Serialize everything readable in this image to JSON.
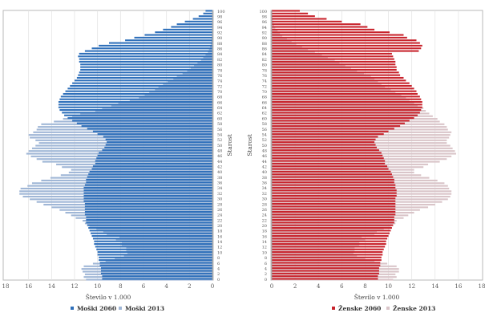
{
  "chart_data": [
    {
      "type": "bar",
      "orientation": "horizontal",
      "side": "left",
      "title": "",
      "xlabel": "Število v 1.000",
      "ylabel": "Starost",
      "xlim": [
        0,
        18
      ],
      "x_reversed": true,
      "x_ticks": [
        "0",
        "2",
        "4",
        "6",
        "8",
        "10",
        "12",
        "14",
        "16",
        "18"
      ],
      "grid": true,
      "legend_position": "bottom",
      "categories_label": "age 0-100",
      "y_tick_labels": [
        "0",
        "2",
        "4",
        "6",
        "8",
        "10",
        "12",
        "14",
        "16",
        "18",
        "20",
        "22",
        "24",
        "26",
        "28",
        "30",
        "32",
        "34",
        "36",
        "38",
        "40",
        "42",
        "44",
        "46",
        "48",
        "50",
        "52",
        "54",
        "56",
        "58",
        "60",
        "62",
        "64",
        "66",
        "68",
        "70",
        "72",
        "74",
        "76",
        "78",
        "80",
        "82",
        "84",
        "86",
        "88",
        "90",
        "92",
        "94",
        "96",
        "98",
        "100"
      ],
      "series": [
        {
          "name": "Moški 2060",
          "color": "#2e6fba",
          "values": [
            9.6,
            9.6,
            9.7,
            9.7,
            9.7,
            9.8,
            9.8,
            9.9,
            9.9,
            10.0,
            10.0,
            10.1,
            10.2,
            10.3,
            10.3,
            10.4,
            10.5,
            10.6,
            10.7,
            10.8,
            10.9,
            11.0,
            11.0,
            11.0,
            11.1,
            11.1,
            11.1,
            11.1,
            11.1,
            11.2,
            11.2,
            11.2,
            11.2,
            11.2,
            11.2,
            11.1,
            11.0,
            11.0,
            10.9,
            10.8,
            10.7,
            10.5,
            10.4,
            10.2,
            10.2,
            10.1,
            10.0,
            9.9,
            9.6,
            9.4,
            9.3,
            9.2,
            9.3,
            9.5,
            10.0,
            10.4,
            10.9,
            11.4,
            11.8,
            12.2,
            12.6,
            12.9,
            13.1,
            13.3,
            13.4,
            13.4,
            13.4,
            13.3,
            13.2,
            13.0,
            12.8,
            12.6,
            12.4,
            12.2,
            12.0,
            11.8,
            11.7,
            11.6,
            11.5,
            11.5,
            11.5,
            11.6,
            11.6,
            11.7,
            11.6,
            11.1,
            10.5,
            9.9,
            9.0,
            7.6,
            6.8,
            5.9,
            5.0,
            4.3,
            3.6,
            3.1,
            2.4,
            1.7,
            1.2,
            0.8,
            0.6
          ]
        },
        {
          "name": "Moški 2013",
          "color": "#9fb6d6",
          "values": [
            11.0,
            11.2,
            11.1,
            11.3,
            11.4,
            11.2,
            10.4,
            9.3,
            8.5,
            7.7,
            7.4,
            7.5,
            7.5,
            7.9,
            7.9,
            8.4,
            8.1,
            9.2,
            9.5,
            10.1,
            10.7,
            11.1,
            11.3,
            11.9,
            12.3,
            12.8,
            13.3,
            14.0,
            14.7,
            15.3,
            15.9,
            16.5,
            16.8,
            16.8,
            16.7,
            16.1,
            15.7,
            14.9,
            14.1,
            13.2,
            12.5,
            12.3,
            13.1,
            13.6,
            14.8,
            15.3,
            15.8,
            16.2,
            16.0,
            15.7,
            15.4,
            15.1,
            15.4,
            15.9,
            16.0,
            15.6,
            15.3,
            15.2,
            14.9,
            13.8,
            13.0,
            12.2,
            11.5,
            10.2,
            9.6,
            8.8,
            8.2,
            7.2,
            6.4,
            5.9,
            5.5,
            5.0,
            4.7,
            4.3,
            3.9,
            3.4,
            3.1,
            2.6,
            2.2,
            1.9,
            1.6,
            1.3,
            1.0,
            0.8,
            0.6,
            0.4,
            0.3,
            0.2,
            0.15,
            0.1,
            0.08,
            0.06,
            0.05,
            0.04,
            0.03,
            0.02,
            0.02,
            0.01,
            0.01,
            0.01,
            0.01
          ]
        }
      ]
    },
    {
      "type": "bar",
      "orientation": "horizontal",
      "side": "right",
      "title": "",
      "xlabel": "Število v 1.000",
      "ylabel": "Starost",
      "xlim": [
        0,
        18
      ],
      "x_ticks": [
        "0",
        "2",
        "4",
        "6",
        "8",
        "10",
        "12",
        "14",
        "16",
        "18"
      ],
      "grid": true,
      "legend_position": "bottom",
      "y_tick_labels": [
        "0",
        "2",
        "4",
        "6",
        "8",
        "10",
        "12",
        "14",
        "16",
        "18",
        "20",
        "22",
        "24",
        "26",
        "28",
        "30",
        "32",
        "34",
        "36",
        "38",
        "40",
        "42",
        "44",
        "46",
        "48",
        "50",
        "52",
        "54",
        "56",
        "58",
        "60",
        "62",
        "64",
        "66",
        "68",
        "70",
        "72",
        "74",
        "76",
        "78",
        "80",
        "82",
        "84",
        "86",
        "88",
        "90",
        "92",
        "94",
        "96",
        "98",
        "100"
      ],
      "series": [
        {
          "name": "Ženske 2060",
          "color": "#c8232c",
          "values": [
            9.1,
            9.1,
            9.2,
            9.2,
            9.2,
            9.3,
            9.3,
            9.4,
            9.4,
            9.5,
            9.5,
            9.6,
            9.7,
            9.8,
            9.8,
            9.9,
            10.0,
            10.1,
            10.2,
            10.3,
            10.4,
            10.5,
            10.5,
            10.5,
            10.6,
            10.6,
            10.6,
            10.6,
            10.6,
            10.6,
            10.6,
            10.7,
            10.7,
            10.7,
            10.6,
            10.6,
            10.5,
            10.5,
            10.4,
            10.3,
            10.2,
            10.0,
            9.9,
            9.7,
            9.7,
            9.6,
            9.5,
            9.4,
            9.2,
            9.0,
            8.9,
            8.8,
            8.9,
            9.1,
            9.6,
            10.0,
            10.5,
            11.0,
            11.4,
            11.8,
            12.2,
            12.5,
            12.7,
            12.8,
            12.9,
            12.9,
            12.9,
            12.8,
            12.7,
            12.5,
            12.4,
            12.2,
            12.0,
            11.8,
            11.5,
            11.3,
            11.0,
            10.9,
            10.7,
            10.7,
            10.6,
            10.6,
            10.5,
            10.4,
            10.3,
            12.6,
            12.8,
            12.9,
            12.7,
            12.4,
            11.6,
            11.3,
            10.1,
            8.8,
            8.2,
            7.6,
            6.0,
            4.7,
            3.7,
            3.1,
            2.4
          ]
        },
        {
          "name": "Ženske 2013",
          "color": "#d9c4c8",
          "values": [
            10.4,
            10.7,
            10.6,
            10.9,
            10.9,
            10.7,
            9.9,
            8.8,
            8.0,
            7.3,
            7.0,
            7.1,
            7.1,
            7.5,
            7.5,
            8.0,
            7.7,
            8.8,
            9.0,
            9.6,
            10.2,
            10.6,
            10.7,
            11.3,
            11.7,
            12.2,
            12.7,
            13.4,
            14.0,
            14.6,
            15.1,
            15.3,
            15.4,
            15.4,
            15.2,
            15.1,
            14.8,
            14.2,
            13.5,
            12.8,
            12.2,
            12.2,
            13.0,
            13.4,
            14.4,
            15.0,
            15.4,
            15.8,
            15.7,
            15.5,
            15.3,
            15.0,
            15.0,
            15.2,
            15.3,
            15.4,
            15.1,
            15.0,
            14.8,
            14.4,
            14.2,
            13.8,
            13.5,
            13.2,
            13.0,
            12.5,
            12.2,
            11.8,
            11.5,
            11.1,
            10.6,
            10.2,
            9.7,
            9.4,
            9.1,
            8.8,
            8.5,
            7.9,
            7.3,
            6.8,
            6.3,
            5.8,
            5.4,
            4.8,
            4.3,
            3.7,
            3.1,
            2.6,
            2.1,
            1.7,
            1.3,
            0.9,
            0.7,
            0.5,
            0.3,
            0.2,
            0.15,
            0.1,
            0.07,
            0.05,
            0.04
          ]
        }
      ]
    }
  ],
  "legend": {
    "left": [
      {
        "label": "Moški 2060",
        "color": "#2e6fba"
      },
      {
        "label": "Moški 2013",
        "color": "#9fb6d6"
      }
    ],
    "right": [
      {
        "label": "Ženske 2060",
        "color": "#c8232c"
      },
      {
        "label": "Ženske 2013",
        "color": "#d9c4c8"
      }
    ]
  },
  "axis_titles": {
    "x_left": "Število v 1.000",
    "x_right": "Število v 1.000",
    "y_left": "Starost",
    "y_right": "Starost"
  }
}
